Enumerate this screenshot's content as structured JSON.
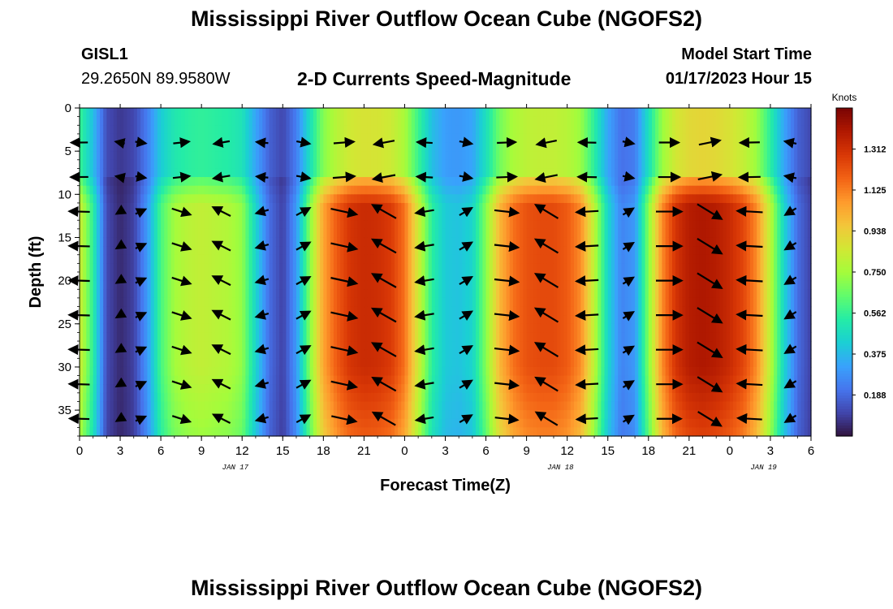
{
  "page": {
    "title": "Mississippi River Outflow Ocean Cube (NGOFS2)",
    "title_bottom": "Mississippi River Outflow Ocean Cube (NGOFS2)",
    "station": "GISL1",
    "location": "29.2650N  89.9580W",
    "subtitle": "2-D Currents Speed-Magnitude",
    "model_label": "Model Start Time",
    "model_time": "01/17/2023 Hour 15"
  },
  "chart_data": {
    "type": "heatmap",
    "title": "2-D Currents Speed-Magnitude",
    "xlabel": "Forecast Time(Z)",
    "ylabel": "Depth (ft)",
    "x_ticks": [
      "0",
      "3",
      "6",
      "9",
      "12",
      "15",
      "18",
      "21",
      "0",
      "3",
      "6",
      "9",
      "12",
      "15",
      "18",
      "21",
      "0",
      "3",
      "6"
    ],
    "x_tick_hours": [
      0,
      3,
      6,
      9,
      12,
      15,
      18,
      21,
      24,
      27,
      30,
      33,
      36,
      39,
      42,
      45,
      48,
      51,
      54
    ],
    "date_labels": [
      {
        "label": "JAN 17",
        "hour": 11.5
      },
      {
        "label": "JAN 18",
        "hour": 35.5
      },
      {
        "label": "JAN 19",
        "hour": 50.5
      }
    ],
    "y_ticks": [
      0,
      5,
      10,
      15,
      20,
      25,
      30,
      35
    ],
    "xlim": [
      0,
      54
    ],
    "ylim": [
      0,
      38
    ],
    "y_inverted": true,
    "colorbar": {
      "label": "Knots",
      "ticks": [
        "1.312",
        "1.125",
        "0.938",
        "0.750",
        "0.562",
        "0.375",
        "0.188"
      ],
      "tick_values": [
        1.312,
        1.125,
        0.938,
        0.75,
        0.562,
        0.375,
        0.188
      ],
      "range": [
        0.0,
        1.5
      ],
      "colormap": [
        "#30123b",
        "#4145ab",
        "#4675ed",
        "#39a2fc",
        "#1bcfd4",
        "#24eca6",
        "#61fc6c",
        "#a4fc3b",
        "#d1e834",
        "#f3c63a",
        "#fe9b2d",
        "#f36315",
        "#d93806",
        "#b11901",
        "#7a0403"
      ]
    },
    "speed_profile_hours": [
      0,
      1,
      2,
      3,
      4,
      5,
      6,
      7,
      8,
      9,
      10,
      11,
      12,
      13,
      14,
      15,
      16,
      17,
      18,
      19,
      20,
      21,
      22,
      23,
      24,
      25,
      26,
      27,
      28,
      29,
      30,
      31,
      32,
      33,
      34,
      35,
      36,
      37,
      38,
      39,
      40,
      41,
      42,
      43,
      44,
      45,
      46,
      47,
      48,
      49,
      50,
      51,
      52,
      53,
      54
    ],
    "speed_profile_knots": [
      0.85,
      0.55,
      0.12,
      0.05,
      0.1,
      0.3,
      0.6,
      0.75,
      0.8,
      0.82,
      0.8,
      0.78,
      0.72,
      0.45,
      0.2,
      0.1,
      0.3,
      0.7,
      1.05,
      1.2,
      1.3,
      1.33,
      1.32,
      1.28,
      1.15,
      0.85,
      0.55,
      0.42,
      0.4,
      0.45,
      0.7,
      1.0,
      1.15,
      1.22,
      1.24,
      1.24,
      1.2,
      1.1,
      0.8,
      0.45,
      0.25,
      0.3,
      0.7,
      1.1,
      1.3,
      1.38,
      1.4,
      1.38,
      1.33,
      1.25,
      1.1,
      0.8,
      0.45,
      0.2,
      0.1
    ],
    "surface_layer_factor": 0.62,
    "arrow_hours": [
      0,
      3,
      4.5,
      7.5,
      10.5,
      13.5,
      16.5,
      19.5,
      22.5,
      25.5,
      28.5,
      31.5,
      34.5,
      37.5,
      40.5,
      43.5,
      46.5,
      49.5,
      52.5
    ],
    "arrow_depths": [
      4,
      8,
      12,
      16,
      20,
      24,
      28,
      32,
      36
    ]
  }
}
